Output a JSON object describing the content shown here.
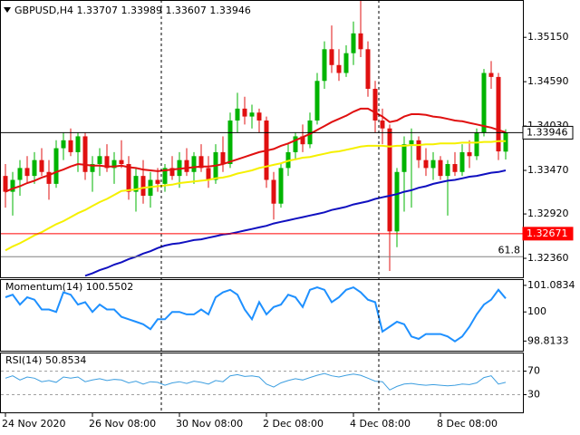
{
  "chart_data": [
    {
      "type": "candlestick",
      "title": "GBPUSD,H4  1.33707 1.33989 1.33607 1.33946",
      "open": [
        1.334,
        1.332,
        1.3335,
        1.335,
        1.334,
        1.336,
        1.3345,
        1.333,
        1.3375,
        1.3385,
        1.337,
        1.339,
        1.3345,
        1.3355,
        1.3365,
        1.335,
        1.336,
        1.3355,
        1.332,
        1.334,
        1.3315,
        1.3335,
        1.333,
        1.335,
        1.334,
        1.336,
        1.3345,
        1.3365,
        1.335,
        1.3335,
        1.337,
        1.3355,
        1.341,
        1.3425,
        1.3415,
        1.342,
        1.341,
        1.3335,
        1.3305,
        1.335,
        1.337,
        1.339,
        1.338,
        1.341,
        1.346,
        1.35,
        1.348,
        1.347,
        1.3495,
        1.352,
        1.35,
        1.345,
        1.341,
        1.34,
        1.327,
        1.3345,
        1.338,
        1.3385,
        1.336,
        1.335,
        1.336,
        1.334,
        1.3355,
        1.3345,
        1.337,
        1.3365,
        1.3395,
        1.347,
        1.3465,
        1.33707
      ],
      "high": [
        1.3355,
        1.3345,
        1.336,
        1.3365,
        1.337,
        1.3375,
        1.336,
        1.3385,
        1.3395,
        1.34,
        1.3395,
        1.3395,
        1.3365,
        1.3375,
        1.338,
        1.337,
        1.3385,
        1.3365,
        1.335,
        1.336,
        1.3345,
        1.335,
        1.3355,
        1.3365,
        1.337,
        1.3375,
        1.337,
        1.338,
        1.3365,
        1.338,
        1.339,
        1.342,
        1.3445,
        1.344,
        1.343,
        1.3425,
        1.3415,
        1.3345,
        1.3355,
        1.338,
        1.3395,
        1.3405,
        1.342,
        1.347,
        1.351,
        1.353,
        1.35,
        1.3505,
        1.3535,
        1.3565,
        1.351,
        1.346,
        1.3425,
        1.3405,
        1.335,
        1.339,
        1.34,
        1.339,
        1.3375,
        1.337,
        1.3365,
        1.336,
        1.337,
        1.338,
        1.3385,
        1.34,
        1.3475,
        1.3485,
        1.347,
        1.33989
      ],
      "low": [
        1.33,
        1.329,
        1.3315,
        1.333,
        1.333,
        1.334,
        1.331,
        1.3325,
        1.336,
        1.3365,
        1.3345,
        1.3335,
        1.332,
        1.334,
        1.3345,
        1.333,
        1.335,
        1.331,
        1.3295,
        1.3305,
        1.33,
        1.332,
        1.332,
        1.3335,
        1.3325,
        1.334,
        1.333,
        1.3345,
        1.3325,
        1.333,
        1.3345,
        1.335,
        1.3395,
        1.3405,
        1.34,
        1.3395,
        1.3325,
        1.3285,
        1.33,
        1.334,
        1.336,
        1.337,
        1.3375,
        1.3405,
        1.345,
        1.347,
        1.346,
        1.3465,
        1.348,
        1.349,
        1.344,
        1.3395,
        1.338,
        1.322,
        1.325,
        1.3295,
        1.33,
        1.335,
        1.334,
        1.3335,
        1.3335,
        1.329,
        1.334,
        1.334,
        1.335,
        1.336,
        1.339,
        1.345,
        1.336,
        1.33607
      ],
      "close": [
        1.332,
        1.3335,
        1.335,
        1.334,
        1.336,
        1.3345,
        1.333,
        1.3375,
        1.3385,
        1.337,
        1.339,
        1.3345,
        1.3355,
        1.3365,
        1.335,
        1.336,
        1.3355,
        1.332,
        1.334,
        1.3315,
        1.3335,
        1.333,
        1.335,
        1.334,
        1.336,
        1.3345,
        1.3365,
        1.335,
        1.3335,
        1.337,
        1.3355,
        1.341,
        1.3425,
        1.3415,
        1.342,
        1.341,
        1.3335,
        1.3305,
        1.335,
        1.337,
        1.339,
        1.338,
        1.341,
        1.346,
        1.35,
        1.348,
        1.347,
        1.3495,
        1.352,
        1.35,
        1.345,
        1.341,
        1.34,
        1.327,
        1.3345,
        1.338,
        1.3385,
        1.336,
        1.335,
        1.336,
        1.334,
        1.3355,
        1.3345,
        1.337,
        1.3365,
        1.3395,
        1.347,
        1.3465,
        1.3371,
        1.33946
      ],
      "up_color": "#00b400",
      "down_color": "#e01010",
      "series": [
        {
          "color": "#e01010",
          "values": [
            1.332,
            1.3324,
            1.3327,
            1.3331,
            1.3334,
            1.3338,
            1.3341,
            1.3345,
            1.3348,
            1.3352,
            1.3355,
            1.3354,
            1.3353,
            1.3353,
            1.3352,
            1.3352,
            1.3353,
            1.3351,
            1.335,
            1.3348,
            1.3347,
            1.3346,
            1.3347,
            1.3348,
            1.3349,
            1.335,
            1.3351,
            1.3352,
            1.3352,
            1.3353,
            1.3355,
            1.3358,
            1.3361,
            1.3364,
            1.3367,
            1.337,
            1.3372,
            1.3374,
            1.3378,
            1.3381,
            1.3385,
            1.3389,
            1.3393,
            1.3398,
            1.3403,
            1.3408,
            1.3412,
            1.3416,
            1.3421,
            1.3425,
            1.3425,
            1.342,
            1.3415,
            1.3408,
            1.341,
            1.3415,
            1.3418,
            1.3418,
            1.3417,
            1.3415,
            1.3414,
            1.3412,
            1.341,
            1.3409,
            1.3407,
            1.3405,
            1.3403,
            1.3401,
            1.3398,
            1.3395
          ]
        },
        {
          "color": "#f5f000",
          "values": [
            1.3246,
            1.3251,
            1.3255,
            1.326,
            1.3265,
            1.3269,
            1.3274,
            1.3279,
            1.3283,
            1.3288,
            1.3293,
            1.3297,
            1.3302,
            1.3307,
            1.3311,
            1.3316,
            1.3321,
            1.3322,
            1.3323,
            1.3325,
            1.3326,
            1.3327,
            1.3328,
            1.3329,
            1.3331,
            1.3332,
            1.3333,
            1.3334,
            1.3335,
            1.3337,
            1.3338,
            1.334,
            1.3343,
            1.3345,
            1.3347,
            1.335,
            1.3352,
            1.3354,
            1.3356,
            1.3359,
            1.3361,
            1.3363,
            1.3364,
            1.3366,
            1.3368,
            1.337,
            1.3371,
            1.3373,
            1.3375,
            1.3377,
            1.3378,
            1.3378,
            1.3378,
            1.3377,
            1.3378,
            1.3378,
            1.3379,
            1.3379,
            1.338,
            1.338,
            1.3381,
            1.3381,
            1.3381,
            1.3382,
            1.3382,
            1.3382,
            1.3383,
            1.3383,
            1.3384,
            1.3384
          ]
        },
        {
          "color": "#1010c0",
          "values": [
            null,
            null,
            null,
            null,
            null,
            null,
            null,
            null,
            null,
            null,
            null,
            1.3214,
            1.3217,
            1.3221,
            1.3224,
            1.3228,
            1.3231,
            1.3235,
            1.3238,
            1.3242,
            1.3245,
            1.3249,
            1.3252,
            1.3254,
            1.3255,
            1.3257,
            1.3259,
            1.326,
            1.3262,
            1.3264,
            1.3266,
            1.3267,
            1.3269,
            1.3271,
            1.3273,
            1.3275,
            1.3277,
            1.328,
            1.3282,
            1.3284,
            1.3286,
            1.3288,
            1.329,
            1.3292,
            1.3294,
            1.3297,
            1.3299,
            1.3301,
            1.3304,
            1.3306,
            1.3308,
            1.3311,
            1.3313,
            1.3315,
            1.3317,
            1.332,
            1.3322,
            1.3325,
            1.3327,
            1.333,
            1.3332,
            1.3334,
            1.3335,
            1.3337,
            1.3339,
            1.334,
            1.3342,
            1.3344,
            1.3345,
            1.3347
          ]
        }
      ],
      "price_lines": [
        {
          "value": 1.33946,
          "color": "#000000"
        },
        {
          "value": 1.32671,
          "color": "#ff0000"
        }
      ],
      "fib_line": {
        "price": 1.3238,
        "level": 61.8,
        "color": "#808080"
      },
      "ylim": [
        1.3212,
        1.3561
      ],
      "yticks": [
        {
          "value": 1.3515,
          "label": "1.35150"
        },
        {
          "value": 1.3459,
          "label": "1.34590"
        },
        {
          "value": 1.3403,
          "label": "1.34030"
        },
        {
          "value": 1.3347,
          "label": "1.33470"
        },
        {
          "value": 1.3292,
          "label": "1.32920"
        },
        {
          "value": 1.3236,
          "label": "1.32360"
        }
      ],
      "xticks": [
        {
          "value": 0,
          "label": "24 Nov 2020"
        },
        {
          "value": 12,
          "label": "26 Nov 08:00"
        },
        {
          "value": 24,
          "label": "30 Nov 08:00"
        },
        {
          "value": 36,
          "label": "2 Dec 08:00"
        },
        {
          "value": 48,
          "label": "4 Dec 08:00"
        },
        {
          "value": 60,
          "label": "8 Dec 08:00"
        }
      ]
    },
    {
      "type": "line",
      "title": "Momentum(14) 100.5502",
      "color": "#1e90ff",
      "values": [
        100.6,
        100.7,
        100.3,
        100.6,
        100.5,
        100.1,
        100.1,
        100.0,
        100.8,
        100.7,
        100.3,
        100.4,
        100.0,
        100.3,
        100.1,
        100.1,
        99.8,
        99.7,
        99.6,
        99.5,
        99.3,
        99.7,
        99.7,
        100.0,
        100.0,
        99.9,
        99.9,
        100.1,
        99.9,
        100.6,
        100.8,
        100.9,
        100.7,
        100.1,
        99.7,
        100.4,
        99.9,
        100.2,
        100.3,
        100.7,
        100.6,
        100.2,
        100.9,
        101.0,
        100.9,
        100.4,
        100.6,
        100.9,
        101.0,
        100.8,
        100.5,
        100.4,
        99.2,
        99.4,
        99.6,
        99.5,
        99.0,
        98.9,
        99.1,
        99.1,
        99.1,
        99.0,
        98.8,
        99.0,
        99.4,
        99.9,
        100.3,
        100.5,
        100.9,
        100.5502
      ],
      "ylim": [
        98.42,
        101.3
      ],
      "yticks": [
        101.0834,
        100,
        98.8133
      ],
      "grid": false
    },
    {
      "type": "line",
      "title": "RSI(14) 50.8534",
      "color": "#3c9ee0",
      "values": [
        58,
        62,
        55,
        60,
        58,
        52,
        54,
        51,
        60,
        58,
        60,
        52,
        55,
        57,
        54,
        56,
        55,
        50,
        53,
        48,
        52,
        51,
        46,
        50,
        52,
        49,
        53,
        51,
        48,
        54,
        52,
        62,
        64,
        61,
        62,
        60,
        48,
        43,
        50,
        54,
        57,
        55,
        59,
        63,
        66,
        62,
        60,
        63,
        65,
        63,
        58,
        53,
        52,
        38,
        44,
        48,
        49,
        47,
        46,
        47,
        46,
        45,
        46,
        48,
        47,
        50,
        59,
        62,
        48,
        50.8534
      ],
      "ylim": [
        0,
        100
      ],
      "yticks": [
        70,
        30
      ],
      "grid": true
    }
  ]
}
